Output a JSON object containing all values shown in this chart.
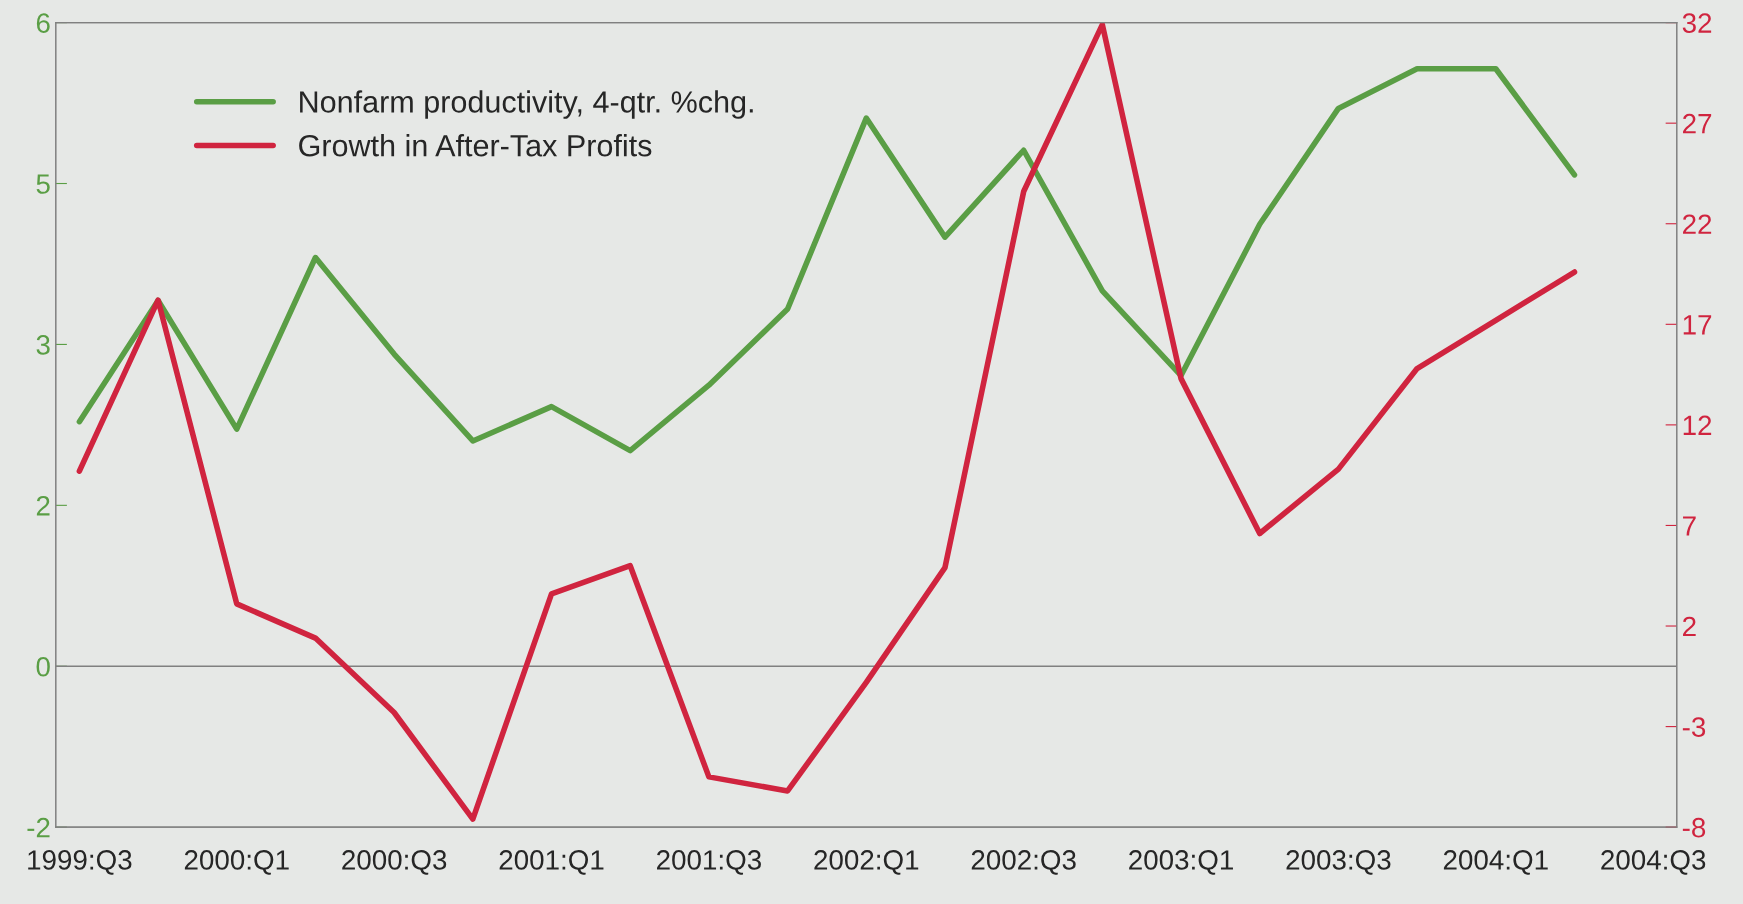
{
  "chart_data": {
    "type": "line",
    "categories": [
      "1999:Q3",
      null,
      "2000:Q1",
      null,
      "2000:Q3",
      null,
      "2001:Q1",
      null,
      "2001:Q3",
      null,
      "2002:Q1",
      null,
      "2002:Q3",
      null,
      "2003:Q1",
      null,
      "2003:Q3",
      null,
      "2004:Q1",
      null,
      "2004:Q3"
    ],
    "series": [
      {
        "name": "Nonfarm productivity, 4-qtr. %chg.",
        "color": "#5a9e45",
        "values": [
          2.28,
          3.41,
          2.21,
          3.81,
          2.91,
          2.1,
          2.42,
          2.01,
          2.62,
          3.33,
          5.11,
          4.0,
          4.81,
          3.5,
          2.71,
          4.12,
          5.2,
          5.57,
          5.57,
          4.58,
          null
        ]
      },
      {
        "name": "Growth in After-Tax Profits",
        "color": "#d0243f",
        "axis": "y2",
        "values": [
          9.7,
          18.2,
          3.1,
          1.4,
          -2.3,
          -7.6,
          3.6,
          5.0,
          -5.5,
          -6.2,
          -0.8,
          4.9,
          23.6,
          31.9,
          14.3,
          6.6,
          9.8,
          14.8,
          17.2,
          19.6,
          null
        ]
      }
    ],
    "ylim": [
      -1.5,
      6
    ],
    "yticks": [
      {
        "value": -1.5,
        "label": "-2"
      },
      0,
      {
        "value": 1.5,
        "label": "2"
      },
      3,
      {
        "value": 4.5,
        "label": "5"
      },
      6
    ],
    "y2lim": [
      -8,
      32
    ],
    "y2ticks": [
      -8,
      -3,
      2,
      7,
      12,
      17,
      22,
      27,
      32
    ],
    "ref_lines": [
      {
        "axis": "y",
        "value": 0,
        "color": "#808080"
      }
    ],
    "grid": false,
    "legend": "top left",
    "marker": "none",
    "line_style": "solid"
  }
}
